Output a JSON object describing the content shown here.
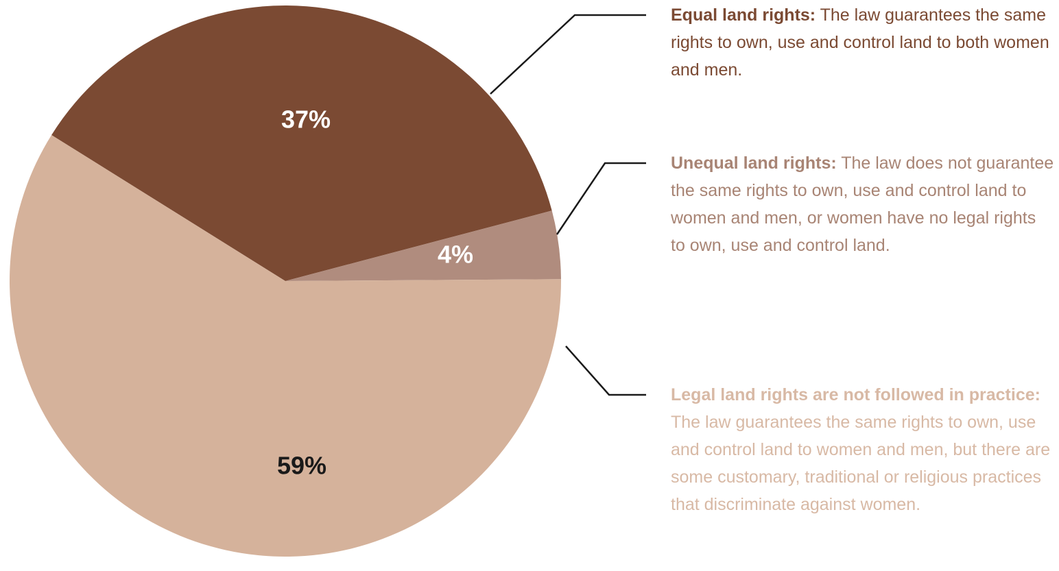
{
  "chart_data": {
    "type": "pie",
    "categories": [
      "Equal land rights:",
      "Unequal land rights:",
      "Legal land rights are not followed in practice:"
    ],
    "descriptions": [
      "The law guarantees the same rights to own, use and control land to both women and men.",
      "The law does not guarantee the same rights to own, use and control land to women and men, or women have no legal rights to own, use and control land.",
      "The law guarantees the same rights to own, use and control land to women and men, but there are some customary, traditional or religious practices that discriminate against women."
    ],
    "values": [
      37,
      4,
      59
    ],
    "value_labels": [
      "37%",
      "4%",
      "59%"
    ],
    "colors": [
      "#7b4a33",
      "#b08c7e",
      "#d5b29b"
    ],
    "text_colors": [
      "#7b4a33",
      "#a88474",
      "#d8b9a5"
    ],
    "value_label_colors": [
      "#ffffff",
      "#ffffff",
      "#1a1a1a"
    ]
  }
}
